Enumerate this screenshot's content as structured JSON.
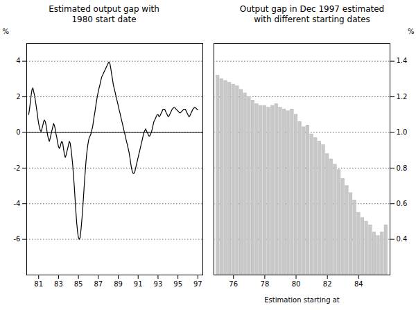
{
  "chart_data": [
    {
      "type": "line",
      "title": "Estimated output gap with\n1980 start date",
      "ylabel": "%",
      "color": "#000000",
      "grid": true,
      "xlim": [
        79.8,
        97.5
      ],
      "ylim": [
        -8,
        5
      ],
      "xticks": [
        81,
        83,
        85,
        87,
        89,
        91,
        93,
        95,
        97
      ],
      "yticks": [
        -6,
        -4,
        -2,
        0,
        2,
        4
      ],
      "x": [
        80.0,
        80.08,
        80.17,
        80.25,
        80.33,
        80.42,
        80.5,
        80.58,
        80.67,
        80.75,
        80.83,
        80.92,
        81.0,
        81.08,
        81.17,
        81.25,
        81.33,
        81.42,
        81.5,
        81.58,
        81.67,
        81.75,
        81.83,
        81.92,
        82.0,
        82.08,
        82.17,
        82.25,
        82.33,
        82.42,
        82.5,
        82.58,
        82.67,
        82.75,
        82.83,
        82.92,
        83.0,
        83.08,
        83.17,
        83.25,
        83.33,
        83.42,
        83.5,
        83.58,
        83.67,
        83.75,
        83.83,
        83.92,
        84.0,
        84.08,
        84.17,
        84.25,
        84.33,
        84.42,
        84.5,
        84.58,
        84.67,
        84.75,
        84.83,
        84.92,
        85.0,
        85.08,
        85.17,
        85.25,
        85.33,
        85.42,
        85.5,
        85.58,
        85.67,
        85.75,
        85.83,
        85.92,
        86.0,
        86.08,
        86.17,
        86.25,
        86.33,
        86.42,
        86.5,
        86.58,
        86.67,
        86.75,
        86.83,
        86.92,
        87.0,
        87.08,
        87.17,
        87.25,
        87.33,
        87.42,
        87.5,
        87.58,
        87.67,
        87.75,
        87.83,
        87.92,
        88.0,
        88.08,
        88.17,
        88.25,
        88.33,
        88.42,
        88.5,
        88.58,
        88.67,
        88.75,
        88.83,
        88.92,
        89.0,
        89.08,
        89.17,
        89.25,
        89.33,
        89.42,
        89.5,
        89.58,
        89.67,
        89.75,
        89.83,
        89.92,
        90.0,
        90.08,
        90.17,
        90.25,
        90.33,
        90.42,
        90.5,
        90.58,
        90.67,
        90.75,
        90.83,
        90.92,
        91.0,
        91.08,
        91.17,
        91.25,
        91.33,
        91.42,
        91.5,
        91.58,
        91.67,
        91.75,
        91.83,
        91.92,
        92.0,
        92.08,
        92.17,
        92.25,
        92.33,
        92.42,
        92.5,
        92.58,
        92.67,
        92.75,
        92.83,
        92.92,
        93.0,
        93.08,
        93.17,
        93.25,
        93.33,
        93.42,
        93.5,
        93.58,
        93.67,
        93.75,
        93.83,
        93.92,
        94.0,
        94.08,
        94.17,
        94.25,
        94.33,
        94.42,
        94.5,
        94.58,
        94.67,
        94.75,
        94.83,
        94.92,
        95.0,
        95.08,
        95.17,
        95.25,
        95.33,
        95.42,
        95.5,
        95.58,
        95.67,
        95.75,
        95.83,
        95.92,
        96.0,
        96.08,
        96.17,
        96.25,
        96.33,
        96.42,
        96.5,
        96.58,
        96.67,
        96.75,
        96.83,
        96.92,
        97.0
      ],
      "values": [
        1.0,
        1.3,
        1.7,
        2.1,
        2.4,
        2.5,
        2.3,
        2.1,
        1.8,
        1.5,
        1.2,
        0.8,
        0.5,
        0.3,
        0.1,
        0.05,
        0.2,
        0.4,
        0.6,
        0.7,
        0.6,
        0.4,
        0.1,
        -0.2,
        -0.4,
        -0.5,
        -0.3,
        -0.1,
        0.1,
        0.3,
        0.5,
        0.4,
        0.2,
        -0.1,
        -0.3,
        -0.6,
        -0.8,
        -0.9,
        -0.8,
        -0.6,
        -0.5,
        -0.6,
        -0.9,
        -1.2,
        -1.4,
        -1.3,
        -1.1,
        -0.9,
        -0.7,
        -0.5,
        -0.6,
        -0.9,
        -1.3,
        -1.8,
        -2.4,
        -3.0,
        -3.8,
        -4.5,
        -5.1,
        -5.6,
        -5.9,
        -6.0,
        -5.9,
        -5.5,
        -5.0,
        -4.4,
        -3.7,
        -3.0,
        -2.3,
        -1.7,
        -1.2,
        -0.8,
        -0.5,
        -0.3,
        -0.2,
        -0.1,
        0.1,
        0.3,
        0.6,
        0.9,
        1.2,
        1.5,
        1.8,
        2.1,
        2.3,
        2.5,
        2.7,
        2.9,
        3.1,
        3.2,
        3.3,
        3.4,
        3.5,
        3.6,
        3.7,
        3.8,
        3.9,
        3.95,
        3.85,
        3.6,
        3.3,
        3.0,
        2.7,
        2.5,
        2.3,
        2.1,
        1.9,
        1.7,
        1.5,
        1.3,
        1.1,
        0.9,
        0.7,
        0.5,
        0.3,
        0.1,
        -0.1,
        -0.3,
        -0.5,
        -0.7,
        -0.9,
        -1.1,
        -1.4,
        -1.7,
        -2.0,
        -2.2,
        -2.3,
        -2.3,
        -2.2,
        -2.0,
        -1.8,
        -1.6,
        -1.4,
        -1.2,
        -1.0,
        -0.8,
        -0.6,
        -0.4,
        -0.2,
        0.0,
        0.1,
        0.2,
        0.1,
        0.0,
        -0.1,
        -0.2,
        -0.2,
        -0.1,
        0.0,
        0.2,
        0.4,
        0.6,
        0.7,
        0.8,
        0.9,
        1.0,
        1.0,
        0.9,
        0.9,
        1.0,
        1.1,
        1.2,
        1.3,
        1.3,
        1.3,
        1.2,
        1.1,
        1.0,
        0.9,
        0.9,
        1.0,
        1.1,
        1.2,
        1.3,
        1.35,
        1.4,
        1.4,
        1.35,
        1.3,
        1.25,
        1.2,
        1.15,
        1.1,
        1.1,
        1.15,
        1.2,
        1.25,
        1.3,
        1.3,
        1.3,
        1.2,
        1.1,
        1.0,
        0.9,
        0.9,
        1.0,
        1.1,
        1.2,
        1.3,
        1.35,
        1.4,
        1.4,
        1.35,
        1.3,
        1.3
      ]
    },
    {
      "type": "bar",
      "title": "Output gap in Dec 1997 estimated\nwith different starting dates",
      "xlabel": "Estimation starting at",
      "ylabel": "%",
      "color": "#c8c8c8",
      "grid": true,
      "xlim": [
        74.75,
        86.0
      ],
      "ylim": [
        0.2,
        1.5
      ],
      "xticks": [
        76,
        78,
        80,
        82,
        84
      ],
      "yticks": [
        0.4,
        0.6,
        0.8,
        {
          "value": 1.0,
          "label": "1.0"
        },
        1.2,
        1.4
      ],
      "x": [
        75.0,
        75.25,
        75.5,
        75.75,
        76.0,
        76.25,
        76.5,
        76.75,
        77.0,
        77.25,
        77.5,
        77.75,
        78.0,
        78.25,
        78.5,
        78.75,
        79.0,
        79.25,
        79.5,
        79.75,
        80.0,
        80.25,
        80.5,
        80.75,
        81.0,
        81.25,
        81.5,
        81.75,
        82.0,
        82.25,
        82.5,
        82.75,
        83.0,
        83.25,
        83.5,
        83.75,
        84.0,
        84.25,
        84.5,
        84.75,
        85.0,
        85.25,
        85.5,
        85.75
      ],
      "values": [
        1.32,
        1.3,
        1.29,
        1.28,
        1.27,
        1.26,
        1.24,
        1.22,
        1.2,
        1.18,
        1.16,
        1.15,
        1.15,
        1.14,
        1.15,
        1.16,
        1.14,
        1.13,
        1.12,
        1.13,
        1.1,
        1.06,
        1.03,
        1.04,
        0.99,
        0.97,
        0.95,
        0.93,
        0.88,
        0.85,
        0.82,
        0.79,
        0.74,
        0.7,
        0.66,
        0.62,
        0.55,
        0.52,
        0.5,
        0.48,
        0.44,
        0.42,
        0.44,
        0.48
      ]
    }
  ]
}
